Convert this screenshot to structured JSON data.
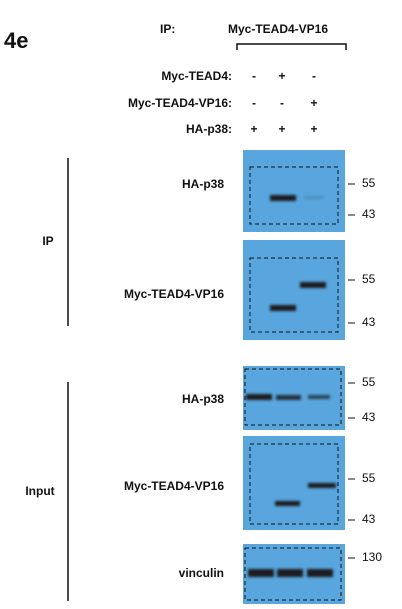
{
  "figure_label": "4e",
  "ip": {
    "label": "IP:",
    "target": "Myc-TEAD4-VP16"
  },
  "conditions": [
    {
      "label": "Myc-TEAD4:",
      "lanes": [
        "-",
        "+",
        "-"
      ]
    },
    {
      "label": "Myc-TEAD4-VP16:",
      "lanes": [
        "-",
        "-",
        "+"
      ]
    },
    {
      "label": "HA-p38:",
      "lanes": [
        "+",
        "+",
        "+"
      ]
    }
  ],
  "groups": [
    {
      "label": "IP",
      "panels": [
        {
          "label": "HA-p38",
          "markers": [
            55,
            43
          ]
        },
        {
          "label": "Myc-TEAD4-VP16",
          "markers": [
            55,
            43
          ]
        }
      ]
    },
    {
      "label": "Input",
      "panels": [
        {
          "label": "HA-p38",
          "markers": [
            55,
            43
          ]
        },
        {
          "label": "Myc-TEAD4-VP16",
          "markers": [
            55,
            43
          ]
        },
        {
          "label": "vinculin",
          "markers": [
            130
          ]
        }
      ]
    }
  ]
}
